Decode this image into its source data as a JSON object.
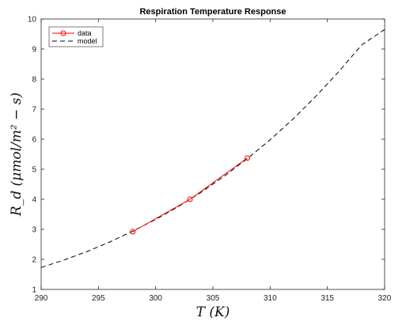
{
  "chart_data": {
    "type": "line",
    "title": "Respiration Temperature Response",
    "xlabel": "T (K)",
    "ylabel": "R_d (μmol/m² − s)",
    "xlim": [
      290,
      320
    ],
    "ylim": [
      1,
      10
    ],
    "xticks": [
      290,
      295,
      300,
      305,
      310,
      315,
      320
    ],
    "yticks": [
      1,
      2,
      3,
      4,
      5,
      6,
      7,
      8,
      9,
      10
    ],
    "grid": false,
    "legend_position": "top-left",
    "series": [
      {
        "name": "data",
        "style": "solid line with circle markers",
        "color": "#ff0000",
        "x": [
          298,
          303,
          308
        ],
        "y": [
          2.92,
          4.0,
          5.37
        ]
      },
      {
        "name": "model",
        "style": "dashed line",
        "color": "#000000",
        "x": [
          290,
          292,
          294,
          296,
          298,
          300,
          302,
          304,
          306,
          308,
          310,
          312,
          314,
          316,
          318,
          320
        ],
        "y": [
          1.73,
          1.98,
          2.26,
          2.58,
          2.94,
          3.33,
          3.76,
          4.24,
          4.77,
          5.35,
          5.98,
          6.67,
          7.43,
          8.25,
          9.14,
          9.65
        ]
      }
    ]
  }
}
